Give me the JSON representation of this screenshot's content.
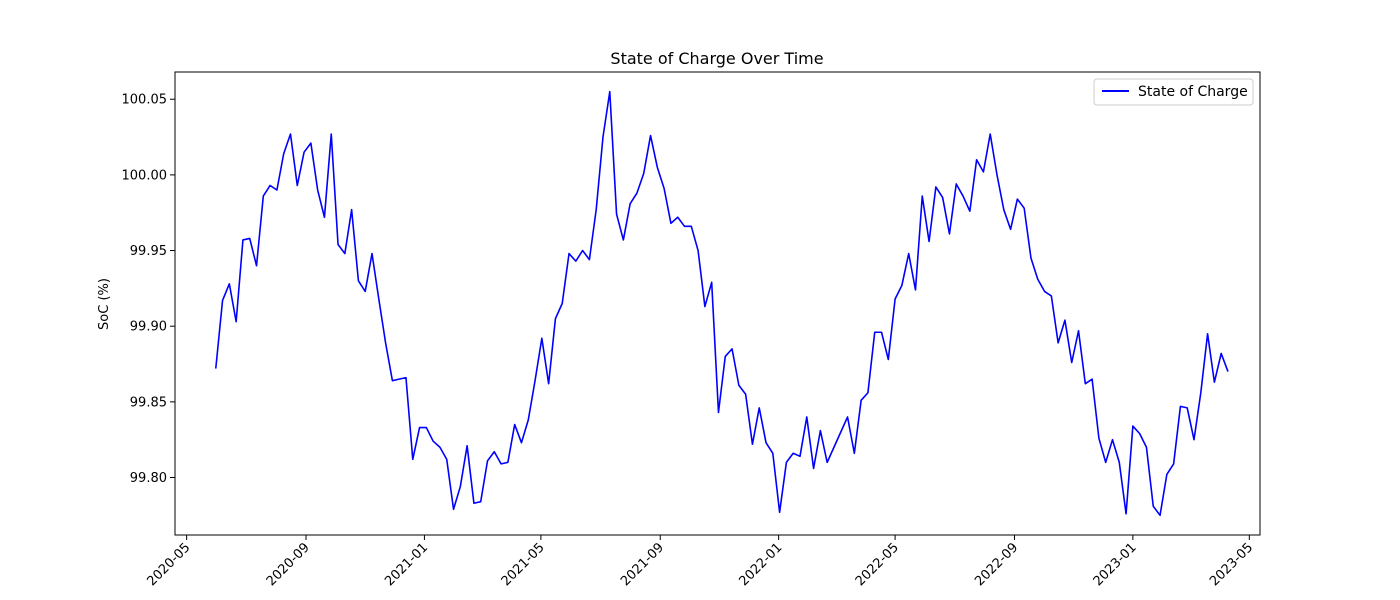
{
  "chart_data": {
    "type": "line",
    "title": "State of Charge Over Time",
    "xlabel": "",
    "ylabel": "SoC (%)",
    "x_axis_type": "date",
    "xlim": [
      "2020-04-19",
      "2023-05-12"
    ],
    "ylim": [
      99.762,
      100.068
    ],
    "x_ticks": [
      "2020-05",
      "2020-09",
      "2021-01",
      "2021-05",
      "2021-09",
      "2022-01",
      "2022-05",
      "2022-09",
      "2023-01",
      "2023-05"
    ],
    "y_ticks": [
      "99.80",
      "99.85",
      "99.90",
      "99.95",
      "100.00",
      "100.05"
    ],
    "grid": false,
    "legend": {
      "position": "top-right",
      "entries": [
        "State of Charge"
      ]
    },
    "series": [
      {
        "name": "State of Charge",
        "color": "#0000ff",
        "points": [
          [
            "2020-05-31",
            99.872
          ],
          [
            "2020-06-07",
            99.917
          ],
          [
            "2020-06-14",
            99.928
          ],
          [
            "2020-06-21",
            99.903
          ],
          [
            "2020-06-28",
            99.957
          ],
          [
            "2020-07-05",
            99.958
          ],
          [
            "2020-07-12",
            99.94
          ],
          [
            "2020-07-19",
            99.986
          ],
          [
            "2020-07-26",
            99.993
          ],
          [
            "2020-08-02",
            99.99
          ],
          [
            "2020-08-09",
            100.014
          ],
          [
            "2020-08-16",
            100.027
          ],
          [
            "2020-08-23",
            99.993
          ],
          [
            "2020-08-30",
            100.015
          ],
          [
            "2020-09-06",
            100.021
          ],
          [
            "2020-09-13",
            99.99
          ],
          [
            "2020-09-20",
            99.972
          ],
          [
            "2020-09-27",
            100.027
          ],
          [
            "2020-10-04",
            99.954
          ],
          [
            "2020-10-11",
            99.948
          ],
          [
            "2020-10-18",
            99.977
          ],
          [
            "2020-10-25",
            99.93
          ],
          [
            "2020-11-01",
            99.923
          ],
          [
            "2020-11-08",
            99.948
          ],
          [
            "2020-11-15",
            99.918
          ],
          [
            "2020-11-22",
            99.889
          ],
          [
            "2020-11-29",
            99.864
          ],
          [
            "2020-12-06",
            99.865
          ],
          [
            "2020-12-13",
            99.866
          ],
          [
            "2020-12-20",
            99.812
          ],
          [
            "2020-12-27",
            99.833
          ],
          [
            "2021-01-03",
            99.833
          ],
          [
            "2021-01-10",
            99.824
          ],
          [
            "2021-01-17",
            99.82
          ],
          [
            "2021-01-24",
            99.812
          ],
          [
            "2021-01-31",
            99.779
          ],
          [
            "2021-02-07",
            99.794
          ],
          [
            "2021-02-14",
            99.821
          ],
          [
            "2021-02-21",
            99.783
          ],
          [
            "2021-02-28",
            99.784
          ],
          [
            "2021-03-07",
            99.811
          ],
          [
            "2021-03-14",
            99.817
          ],
          [
            "2021-03-21",
            99.809
          ],
          [
            "2021-03-28",
            99.81
          ],
          [
            "2021-04-04",
            99.835
          ],
          [
            "2021-04-11",
            99.823
          ],
          [
            "2021-04-18",
            99.838
          ],
          [
            "2021-04-25",
            99.864
          ],
          [
            "2021-05-02",
            99.892
          ],
          [
            "2021-05-09",
            99.862
          ],
          [
            "2021-05-16",
            99.905
          ],
          [
            "2021-05-23",
            99.915
          ],
          [
            "2021-05-30",
            99.948
          ],
          [
            "2021-06-06",
            99.943
          ],
          [
            "2021-06-13",
            99.95
          ],
          [
            "2021-06-20",
            99.944
          ],
          [
            "2021-06-27",
            99.977
          ],
          [
            "2021-07-04",
            100.025
          ],
          [
            "2021-07-11",
            100.055
          ],
          [
            "2021-07-18",
            99.974
          ],
          [
            "2021-07-25",
            99.957
          ],
          [
            "2021-08-01",
            99.981
          ],
          [
            "2021-08-08",
            99.988
          ],
          [
            "2021-08-15",
            100.001
          ],
          [
            "2021-08-22",
            100.026
          ],
          [
            "2021-08-29",
            100.005
          ],
          [
            "2021-09-05",
            99.991
          ],
          [
            "2021-09-12",
            99.968
          ],
          [
            "2021-09-19",
            99.972
          ],
          [
            "2021-09-26",
            99.966
          ],
          [
            "2021-10-03",
            99.966
          ],
          [
            "2021-10-10",
            99.95
          ],
          [
            "2021-10-17",
            99.913
          ],
          [
            "2021-10-24",
            99.929
          ],
          [
            "2021-10-31",
            99.843
          ],
          [
            "2021-11-07",
            99.88
          ],
          [
            "2021-11-14",
            99.885
          ],
          [
            "2021-11-21",
            99.861
          ],
          [
            "2021-11-28",
            99.855
          ],
          [
            "2021-12-05",
            99.822
          ],
          [
            "2021-12-12",
            99.846
          ],
          [
            "2021-12-19",
            99.823
          ],
          [
            "2021-12-26",
            99.816
          ],
          [
            "2022-01-02",
            99.777
          ],
          [
            "2022-01-09",
            99.81
          ],
          [
            "2022-01-16",
            99.816
          ],
          [
            "2022-01-23",
            99.814
          ],
          [
            "2022-01-30",
            99.84
          ],
          [
            "2022-02-06",
            99.806
          ],
          [
            "2022-02-13",
            99.831
          ],
          [
            "2022-02-20",
            99.81
          ],
          [
            "2022-02-27",
            99.82
          ],
          [
            "2022-03-06",
            99.83
          ],
          [
            "2022-03-13",
            99.84
          ],
          [
            "2022-03-20",
            99.816
          ],
          [
            "2022-03-27",
            99.851
          ],
          [
            "2022-04-03",
            99.856
          ],
          [
            "2022-04-10",
            99.896
          ],
          [
            "2022-04-17",
            99.896
          ],
          [
            "2022-04-24",
            99.878
          ],
          [
            "2022-05-01",
            99.918
          ],
          [
            "2022-05-08",
            99.927
          ],
          [
            "2022-05-15",
            99.948
          ],
          [
            "2022-05-22",
            99.924
          ],
          [
            "2022-05-29",
            99.986
          ],
          [
            "2022-06-05",
            99.956
          ],
          [
            "2022-06-12",
            99.992
          ],
          [
            "2022-06-19",
            99.985
          ],
          [
            "2022-06-26",
            99.961
          ],
          [
            "2022-07-03",
            99.994
          ],
          [
            "2022-07-10",
            99.986
          ],
          [
            "2022-07-17",
            99.976
          ],
          [
            "2022-07-24",
            100.01
          ],
          [
            "2022-07-31",
            100.002
          ],
          [
            "2022-08-07",
            100.027
          ],
          [
            "2022-08-14",
            100.0
          ],
          [
            "2022-08-21",
            99.977
          ],
          [
            "2022-08-28",
            99.964
          ],
          [
            "2022-09-04",
            99.984
          ],
          [
            "2022-09-11",
            99.978
          ],
          [
            "2022-09-18",
            99.945
          ],
          [
            "2022-09-25",
            99.931
          ],
          [
            "2022-10-02",
            99.923
          ],
          [
            "2022-10-09",
            99.92
          ],
          [
            "2022-10-16",
            99.889
          ],
          [
            "2022-10-23",
            99.904
          ],
          [
            "2022-10-30",
            99.876
          ],
          [
            "2022-11-06",
            99.897
          ],
          [
            "2022-11-13",
            99.862
          ],
          [
            "2022-11-20",
            99.865
          ],
          [
            "2022-11-27",
            99.826
          ],
          [
            "2022-12-04",
            99.81
          ],
          [
            "2022-12-11",
            99.825
          ],
          [
            "2022-12-18",
            99.81
          ],
          [
            "2022-12-25",
            99.776
          ],
          [
            "2023-01-01",
            99.834
          ],
          [
            "2023-01-08",
            99.829
          ],
          [
            "2023-01-15",
            99.82
          ],
          [
            "2023-01-22",
            99.781
          ],
          [
            "2023-01-29",
            99.775
          ],
          [
            "2023-02-05",
            99.802
          ],
          [
            "2023-02-12",
            99.809
          ],
          [
            "2023-02-19",
            99.847
          ],
          [
            "2023-02-26",
            99.846
          ],
          [
            "2023-03-05",
            99.825
          ],
          [
            "2023-03-12",
            99.856
          ],
          [
            "2023-03-19",
            99.895
          ],
          [
            "2023-03-26",
            99.863
          ],
          [
            "2023-04-02",
            99.882
          ],
          [
            "2023-04-09",
            99.87
          ]
        ]
      }
    ]
  }
}
